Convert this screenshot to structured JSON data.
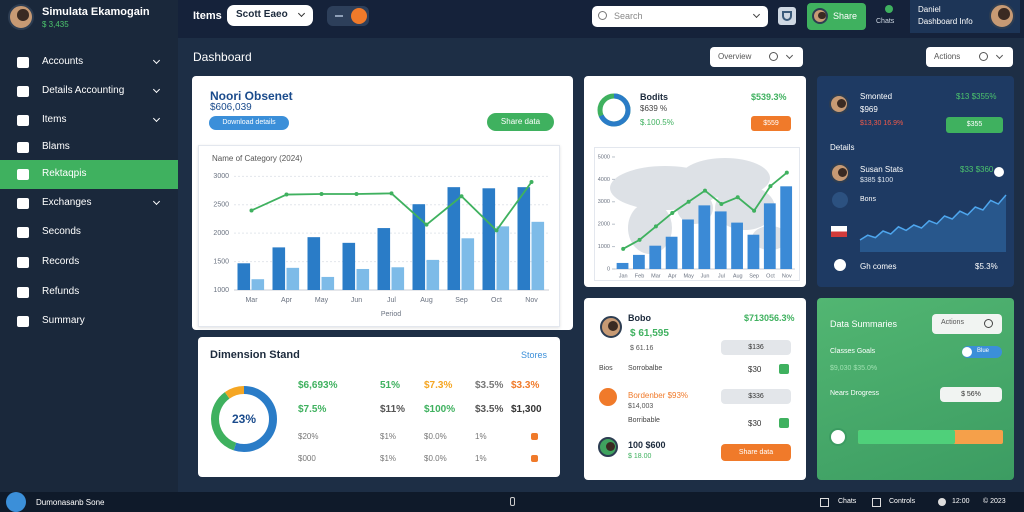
{
  "sidebar": {
    "user_name": "Simulata Ekamogain",
    "user_balance": "$ 3,435",
    "menu": [
      "Accounts",
      "Details Accounting",
      "Items",
      "Blams",
      "Rektaqpis",
      "Exchanges",
      "Seconds",
      "Records",
      "Refunds",
      "Summary"
    ],
    "active_index": 4
  },
  "topbar": {
    "label": "Items",
    "dropdown": "Scott Eaeo",
    "search": "Search",
    "share_button": "Share",
    "chats": "Chats",
    "profile_name": "Daniel",
    "profile_role": "Dashboard Info"
  },
  "page": {
    "title": "Dashboard",
    "overview_button": "Overview",
    "actions_button": "Actions"
  },
  "revenue_card": {
    "title": "Noori Obsenet",
    "amount": "$606,039",
    "left_button": "Download details",
    "right_button": "Share data",
    "chart": {
      "type": "bar",
      "title": "Name of Category (2024)",
      "categories": [
        "Mar",
        "Apr",
        "May",
        "Jun",
        "Jul",
        "Aug",
        "Sep",
        "Oct",
        "Nov"
      ],
      "series": [
        {
          "color": "#2a7cc7",
          "values": [
            1470,
            1750,
            1930,
            1830,
            2090,
            2510,
            2810,
            2790,
            2810
          ]
        },
        {
          "color": "#7dbbe8",
          "values": [
            1190,
            1390,
            1230,
            1370,
            1400,
            1530,
            1910,
            2120,
            2200
          ]
        },
        {
          "type": "line",
          "color": "#3fb15f",
          "values": [
            2400,
            2680,
            2690,
            2690,
            2700,
            2150,
            2650,
            2050,
            2900
          ]
        }
      ],
      "ylim": [
        1000,
        3200
      ],
      "yticks": [
        1000,
        1500,
        2000,
        2500,
        3000
      ],
      "grid": true,
      "x_label": "Period"
    }
  },
  "dimension_card": {
    "title": "Dimension Stand",
    "link": "Stores",
    "donut": {
      "values": [
        55,
        35,
        10
      ],
      "colors": [
        "#2a7cc7",
        "#3fb15f",
        "#f5a623"
      ],
      "center_label": "23%"
    },
    "rows": [
      [
        "$6,693%",
        "51%",
        "$7.3%",
        "$3.5%",
        "$3.3%"
      ],
      [
        "$7.5%",
        "$11%",
        "$100%",
        "$3.5%",
        "$1,300"
      ],
      [
        "$20%",
        "$1%",
        "$0.0%",
        "1%"
      ],
      [
        "$000",
        "$1%",
        "$0.0%",
        "1%"
      ]
    ]
  },
  "stats_card": {
    "title": "Bodits",
    "line1": "$639 %",
    "line2": "$.100.5%",
    "highlight": "$539.3%",
    "button": "$559",
    "chart": {
      "type": "bar",
      "categories": [
        "Jan",
        "Feb",
        "Mar",
        "Apr",
        "May",
        "Jun",
        "Jul",
        "Aug",
        "Sep",
        "Oct",
        "Nov"
      ],
      "series": [
        {
          "color": "#3b8ad6",
          "values": [
            270,
            630,
            1040,
            1440,
            2210,
            2840,
            2570,
            2070,
            1530,
            2930,
            3690
          ]
        },
        {
          "type": "line",
          "color": "#3fb15f",
          "values": [
            900,
            1300,
            1900,
            2500,
            3000,
            3500,
            2900,
            3200,
            2600,
            3700,
            4300
          ]
        }
      ],
      "ylim": [
        0,
        5400
      ],
      "yticks": [
        0,
        1000,
        2000,
        3000,
        4000,
        5000
      ],
      "grid": false
    }
  },
  "list_card": {
    "rows": [
      {
        "title": "Bobo",
        "amount": "$ 61,595",
        "sub": "$ 61.16",
        "highlight": "$713056.3%",
        "pill": "$136"
      },
      {
        "label": "Bios",
        "title": "Sorrobalbe",
        "value": "$30"
      },
      {
        "title": "Bordenber $93%",
        "sub": "$14,003",
        "pill": "$336"
      },
      {
        "title": "Borribable",
        "value": "$30"
      },
      {
        "title": "100 $600",
        "sub": "$ 18.00",
        "pill": "Share data"
      }
    ]
  },
  "profile_card": {
    "name": "Smonted",
    "amount": "$969",
    "change": "$13,30 16.9%",
    "gain": "$13 $355%",
    "button": "$355",
    "details": "Details",
    "person": "Susan Stats",
    "person_sub": "$385 $100",
    "person_value": "$33 $360",
    "bons": "Bons",
    "trend": {
      "values": [
        20,
        28,
        24,
        35,
        30,
        42,
        36,
        45,
        40,
        52,
        47,
        60,
        55,
        68,
        62,
        75,
        70,
        86,
        80,
        95
      ]
    },
    "footer_label": "Gh comes",
    "footer_value": "$5.3%"
  },
  "summary_card": {
    "title": "Data Summaries",
    "button": "Actions",
    "goals": "Classes Goals",
    "toggle": "Blue",
    "goals_value": "$9,030 $35.0%",
    "progress_label": "Nears Drogress",
    "progress_pill": "$ 56%",
    "progress": 67
  },
  "footer": {
    "app": "Dumonasanb Sone",
    "chats": "Chats",
    "controls": "Controls",
    "time": "12:00",
    "year": "© 2023"
  }
}
